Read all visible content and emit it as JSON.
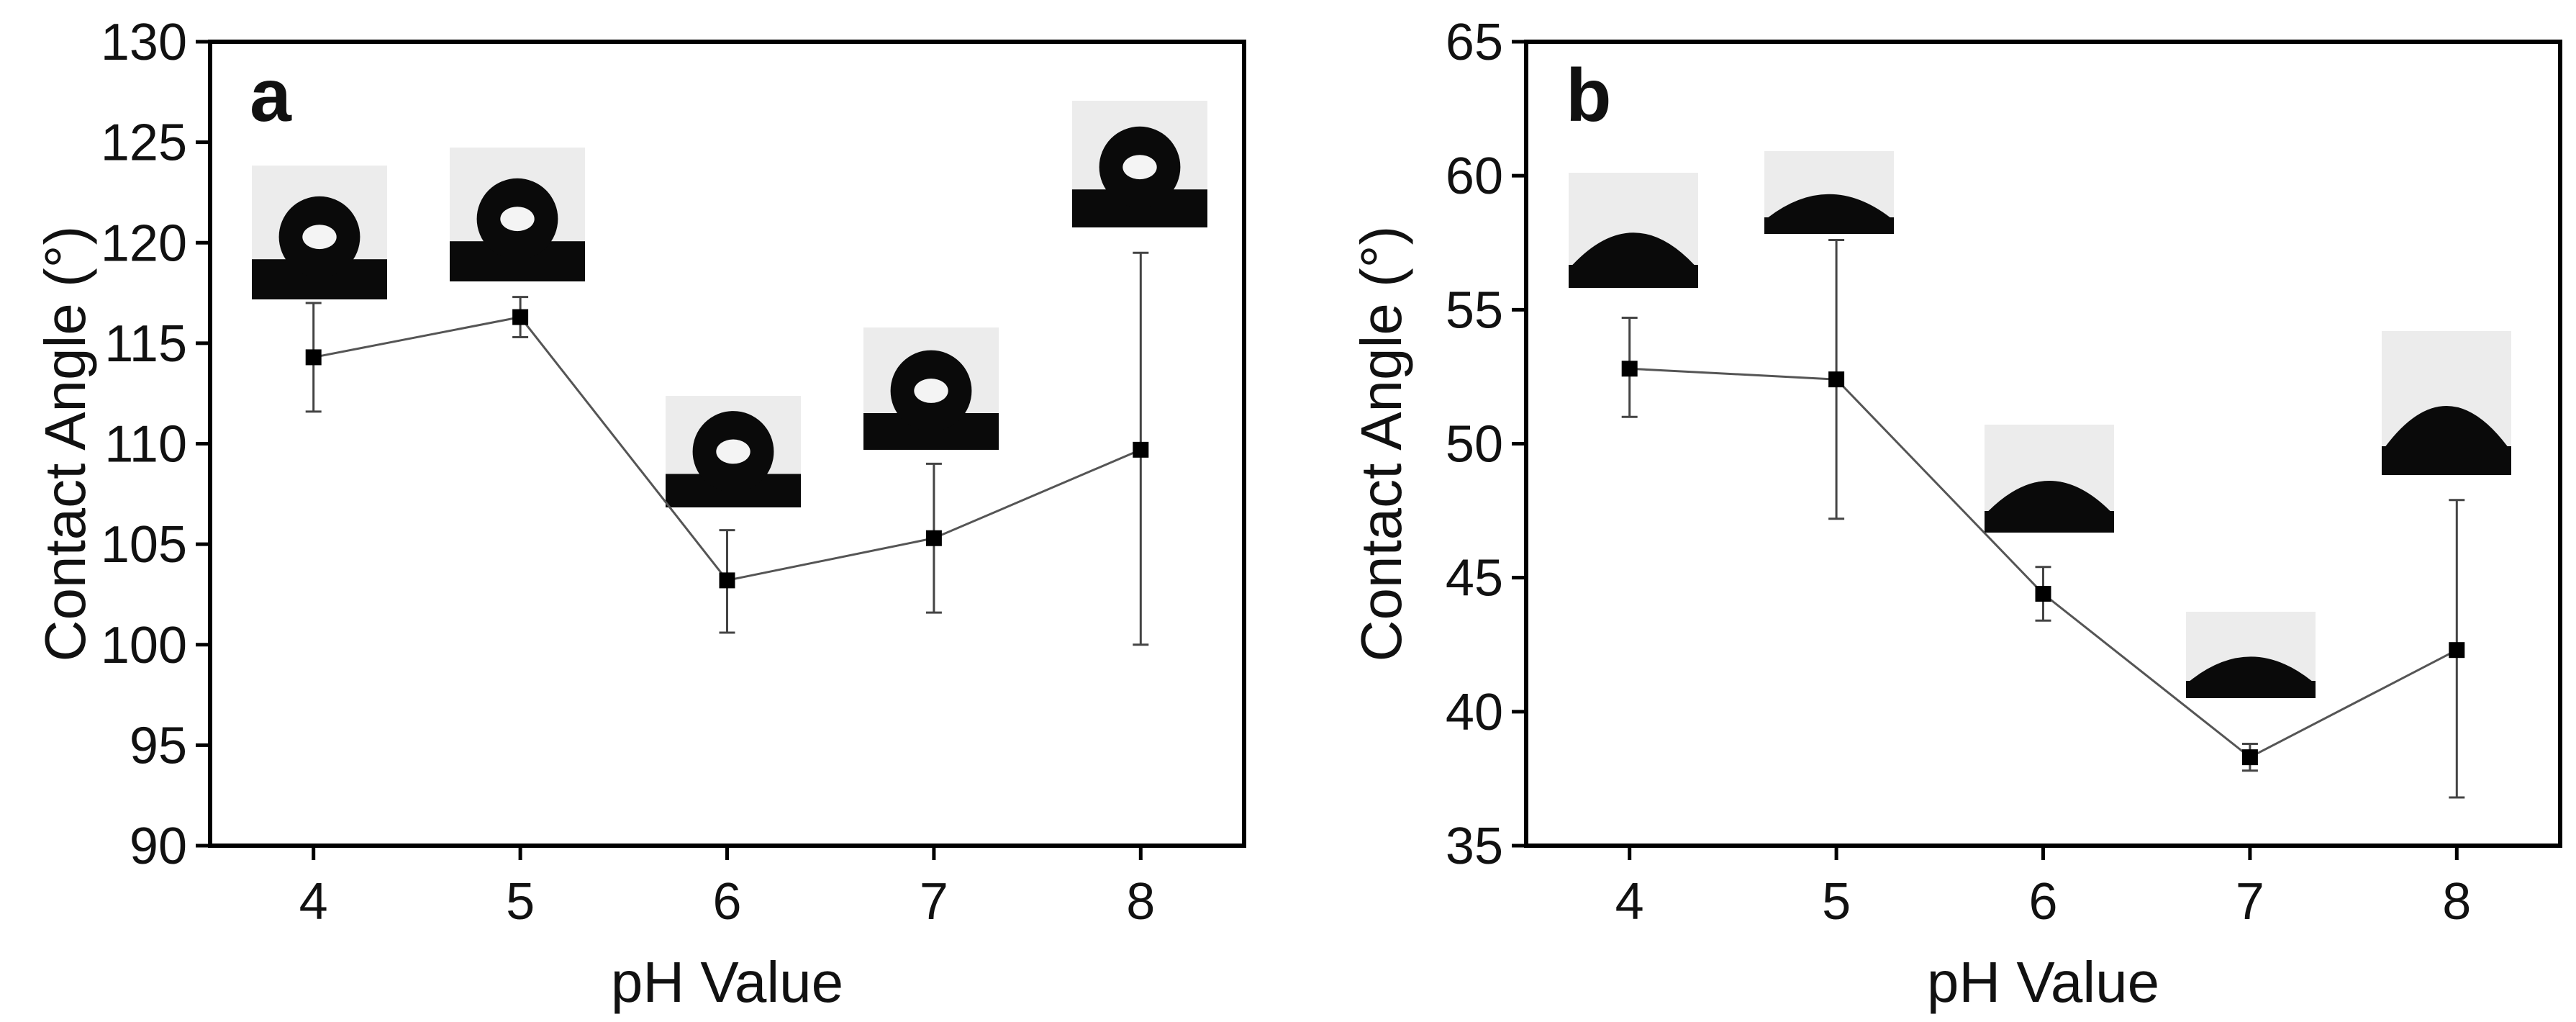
{
  "chart_data": [
    {
      "type": "line",
      "panel_label": "a",
      "xlabel": "pH Value",
      "ylabel": "Contact Angle (°)",
      "categories": [
        "4",
        "5",
        "6",
        "7",
        "8"
      ],
      "x": [
        4,
        5,
        6,
        7,
        8
      ],
      "xlim": [
        3.5,
        8.5
      ],
      "ylim": [
        90,
        130
      ],
      "yticks": [
        90,
        95,
        100,
        105,
        110,
        115,
        120,
        125,
        130
      ],
      "series": [
        {
          "values": [
            114.3,
            116.3,
            103.2,
            105.3,
            109.7
          ],
          "error_low": [
            111.6,
            115.3,
            100.6,
            101.6,
            100.0
          ],
          "error_high": [
            117.0,
            117.3,
            105.7,
            109.0,
            119.5
          ],
          "marker": "square",
          "color": "#000000"
        }
      ],
      "inset_images": [
        "droplet-image",
        "droplet-image",
        "droplet-image",
        "droplet-image",
        "droplet-image"
      ],
      "grid": false,
      "legend": "none"
    },
    {
      "type": "line",
      "panel_label": "b",
      "xlabel": "pH Value",
      "ylabel": "Contact Angle (°)",
      "categories": [
        "4",
        "5",
        "6",
        "7",
        "8"
      ],
      "x": [
        4,
        5,
        6,
        7,
        8
      ],
      "xlim": [
        3.5,
        8.5
      ],
      "ylim": [
        35,
        65
      ],
      "yticks": [
        35,
        40,
        45,
        50,
        55,
        60,
        65
      ],
      "series": [
        {
          "values": [
            52.8,
            52.4,
            44.4,
            38.3,
            42.3
          ],
          "error_low": [
            51.0,
            47.2,
            43.4,
            37.8,
            36.8
          ],
          "error_high": [
            54.7,
            57.6,
            45.4,
            38.8,
            47.9
          ],
          "marker": "square",
          "color": "#000000"
        }
      ],
      "inset_images": [
        "droplet-image",
        "droplet-image",
        "droplet-image",
        "droplet-image",
        "droplet-image"
      ],
      "grid": false,
      "legend": "none"
    }
  ]
}
